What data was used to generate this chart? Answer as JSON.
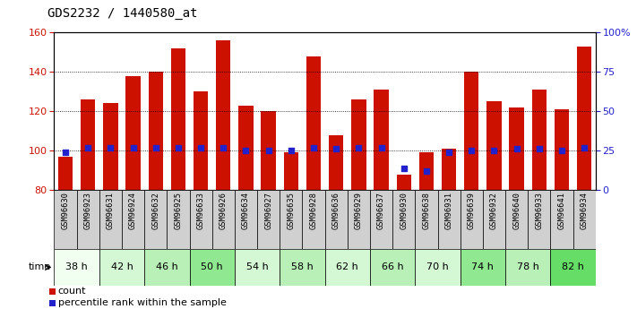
{
  "title": "GDS2232 / 1440580_at",
  "samples": [
    "GSM96630",
    "GSM96923",
    "GSM96631",
    "GSM96924",
    "GSM96632",
    "GSM96925",
    "GSM96633",
    "GSM96926",
    "GSM96634",
    "GSM96927",
    "GSM96635",
    "GSM96928",
    "GSM96636",
    "GSM96929",
    "GSM96637",
    "GSM96930",
    "GSM96638",
    "GSM96931",
    "GSM96639",
    "GSM96932",
    "GSM96640",
    "GSM96933",
    "GSM96641",
    "GSM96934"
  ],
  "counts": [
    97,
    126,
    124,
    138,
    140,
    152,
    130,
    156,
    123,
    120,
    99,
    148,
    108,
    126,
    131,
    88,
    99,
    101,
    140,
    125,
    122,
    131,
    121,
    153
  ],
  "percentile_ranks": [
    24,
    27,
    27,
    27,
    27,
    27,
    27,
    27,
    25,
    25,
    25,
    27,
    26,
    27,
    27,
    14,
    12,
    24,
    25,
    25,
    26,
    26,
    25,
    27
  ],
  "time_groups": [
    {
      "label": "38 h",
      "indices": [
        0,
        1
      ],
      "color": "#f0fff0"
    },
    {
      "label": "42 h",
      "indices": [
        2,
        3
      ],
      "color": "#d4f7d4"
    },
    {
      "label": "46 h",
      "indices": [
        4,
        5
      ],
      "color": "#b8f0b8"
    },
    {
      "label": "50 h",
      "indices": [
        6,
        7
      ],
      "color": "#90e890"
    },
    {
      "label": "54 h",
      "indices": [
        8,
        9
      ],
      "color": "#d4f7d4"
    },
    {
      "label": "58 h",
      "indices": [
        10,
        11
      ],
      "color": "#b8f0b8"
    },
    {
      "label": "62 h",
      "indices": [
        12,
        13
      ],
      "color": "#d4f7d4"
    },
    {
      "label": "66 h",
      "indices": [
        14,
        15
      ],
      "color": "#b8f0b8"
    },
    {
      "label": "70 h",
      "indices": [
        16,
        17
      ],
      "color": "#d4f7d4"
    },
    {
      "label": "74 h",
      "indices": [
        18,
        19
      ],
      "color": "#90e890"
    },
    {
      "label": "78 h",
      "indices": [
        20,
        21
      ],
      "color": "#b8f0b8"
    },
    {
      "label": "82 h",
      "indices": [
        22,
        23
      ],
      "color": "#66dd66"
    }
  ],
  "bar_color": "#cc1100",
  "dot_color": "#2222cc",
  "ylim_left": [
    80,
    160
  ],
  "ylim_right": [
    0,
    100
  ],
  "yticks_left": [
    80,
    100,
    120,
    140,
    160
  ],
  "yticks_right": [
    0,
    25,
    50,
    75,
    100
  ],
  "left_tick_color": "#cc1100",
  "right_tick_color": "#2222cc",
  "sample_bg_color": "#d0d0d0",
  "legend_count": "count",
  "legend_percentile": "percentile rank within the sample"
}
